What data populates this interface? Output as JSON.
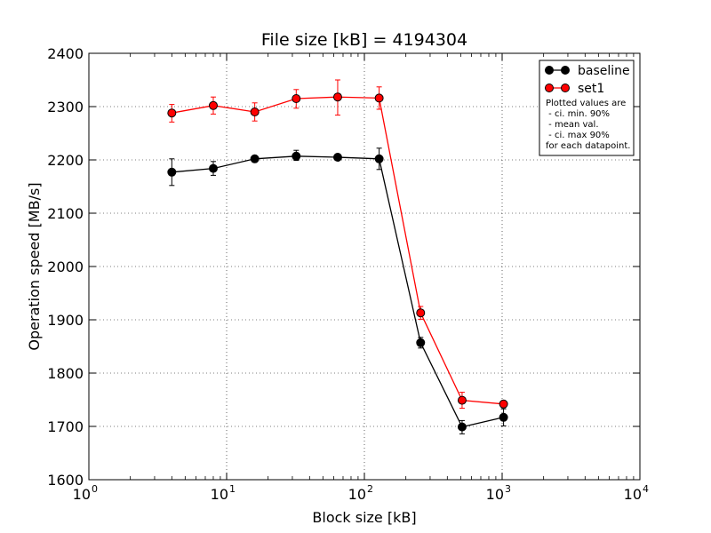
{
  "chart_data": {
    "type": "line",
    "title": "File size [kB] = 4194304",
    "xlabel": "Block size [kB]",
    "ylabel": "Operation speed [MB/s]",
    "xscale": "log",
    "xlim": [
      1,
      10000
    ],
    "ylim": [
      1600,
      2400
    ],
    "x_ticks": [
      {
        "value": 1,
        "base": "10",
        "exp": "0"
      },
      {
        "value": 10,
        "base": "10",
        "exp": "1"
      },
      {
        "value": 100,
        "base": "10",
        "exp": "2"
      },
      {
        "value": 1000,
        "base": "10",
        "exp": "3"
      },
      {
        "value": 10000,
        "base": "10",
        "exp": "4"
      }
    ],
    "y_ticks": [
      {
        "value": 1600,
        "label": "1600"
      },
      {
        "value": 1700,
        "label": "1700"
      },
      {
        "value": 1800,
        "label": "1800"
      },
      {
        "value": 1900,
        "label": "1900"
      },
      {
        "value": 2000,
        "label": "2000"
      },
      {
        "value": 2100,
        "label": "2100"
      },
      {
        "value": 2200,
        "label": "2200"
      },
      {
        "value": 2300,
        "label": "2300"
      },
      {
        "value": 2400,
        "label": "2400"
      }
    ],
    "grid": true,
    "legend_position": "top-right",
    "x": [
      4,
      8,
      16,
      32,
      64,
      128,
      256,
      512,
      1024
    ],
    "series": [
      {
        "name": "baseline",
        "color": "#000000",
        "values": [
          2177,
          2184,
          2202,
          2207,
          2205,
          2202,
          1857,
          1699,
          1717
        ],
        "ci_min": [
          2152,
          2171,
          2199,
          2199,
          2202,
          2182,
          1847,
          1686,
          1701
        ],
        "ci_max": [
          2202,
          2197,
          2205,
          2218,
          2207,
          2222,
          1867,
          1711,
          1733
        ]
      },
      {
        "name": "set1",
        "color": "#ff0000",
        "values": [
          2288,
          2302,
          2290,
          2315,
          2318,
          2316,
          1913,
          1749,
          1742
        ],
        "ci_min": [
          2271,
          2286,
          2273,
          2297,
          2284,
          2295,
          1901,
          1734,
          1738
        ],
        "ci_max": [
          2304,
          2318,
          2307,
          2332,
          2350,
          2337,
          1925,
          1764,
          1746
        ]
      }
    ],
    "legend_note": [
      "Plotted values are",
      " - ci. min. 90%",
      " - mean val.",
      " - ci. max 90%",
      "for each datapoint."
    ]
  }
}
